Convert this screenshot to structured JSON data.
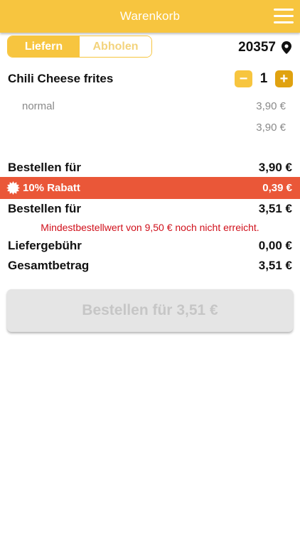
{
  "header": {
    "title": "Warenkorb",
    "menu_icon": "hamburger-menu-icon"
  },
  "delivery_toggle": {
    "active": "Liefern",
    "inactive": "Abholen"
  },
  "location": {
    "postal_code": "20357",
    "icon": "location-pin-icon"
  },
  "cart": {
    "item_name": "Chili Cheese frites",
    "quantity": "1",
    "minus_label": "−",
    "plus_label": "+",
    "variant": "normal",
    "variant_price": "3,90 €",
    "item_total": "3,90 €"
  },
  "summary": {
    "order_for_label": "Bestellen für",
    "order_for_value": "3,90 €",
    "discount_label": "10% Rabatt",
    "discount_value": "0,39 €",
    "order_for_after_label": "Bestellen für",
    "order_for_after_value": "3,51 €",
    "min_order_warning": "Mindestbestellwert von 9,50 € noch nicht erreicht.",
    "delivery_fee_label": "Liefergebühr",
    "delivery_fee_value": "0,00 €",
    "total_label": "Gesamtbetrag",
    "total_value": "3,51 €"
  },
  "order_button": {
    "label": "Bestellen für 3,51 €"
  },
  "colors": {
    "accent": "#f7c53f",
    "accent_dark": "#e0a210",
    "discount_bg": "#ea5738",
    "warning_text": "#d0101b",
    "disabled_button": "#e5e5e5"
  }
}
